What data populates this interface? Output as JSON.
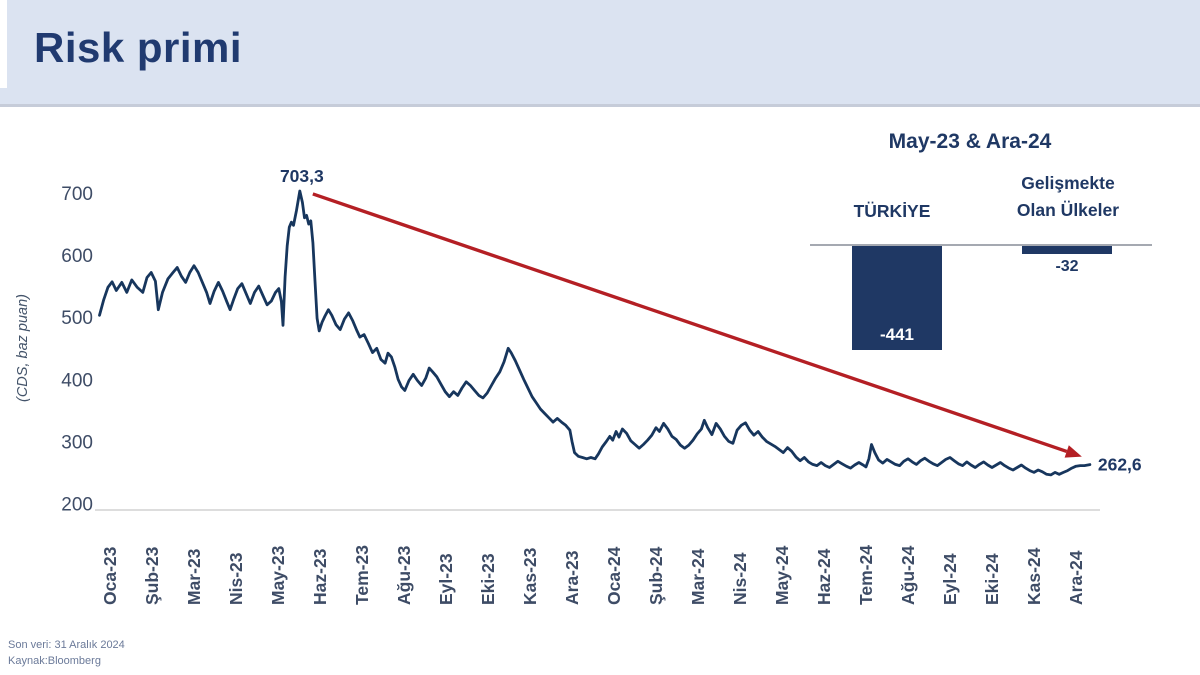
{
  "header": {
    "title": "Risk primi"
  },
  "footer": {
    "last_data": "Son veri: 31 Aralık 2024",
    "source": "Kaynak:Bloomberg"
  },
  "colors": {
    "navy": "#1f3864",
    "line": "#17365d",
    "red": "#b41f24",
    "header_bg": "#dbe3f1",
    "axis_line": "#d2d2d2",
    "tick_text": "#3e4c66",
    "footer_text": "#6b7a99"
  },
  "chart_data": {
    "type": "line",
    "title": "Risk primi",
    "ylabel": "(CDS, baz puan)",
    "ylim": [
      200,
      750
    ],
    "yticks": [
      200,
      300,
      400,
      500,
      600,
      700
    ],
    "grid": false,
    "legend": "none",
    "x_categories": [
      "Oca-23",
      "Şub-23",
      "Mar-23",
      "Nis-23",
      "May-23",
      "Haz-23",
      "Tem-23",
      "Ağu-23",
      "Eyl-23",
      "Eki-23",
      "Kas-23",
      "Ara-23",
      "Oca-24",
      "Şub-24",
      "Mar-24",
      "Nis-24",
      "May-24",
      "Haz-24",
      "Tem-24",
      "Ağu-24",
      "Eyl-24",
      "Eki-24",
      "Kas-24",
      "Ara-24"
    ],
    "series": [
      {
        "name": "Türkiye CDS (baz puan)",
        "points": [
          [
            -0.25,
            503
          ],
          [
            -0.15,
            528
          ],
          [
            -0.05,
            548
          ],
          [
            0.05,
            557
          ],
          [
            0.15,
            543
          ],
          [
            0.28,
            556
          ],
          [
            0.4,
            540
          ],
          [
            0.52,
            560
          ],
          [
            0.65,
            548
          ],
          [
            0.78,
            540
          ],
          [
            0.88,
            564
          ],
          [
            0.98,
            572
          ],
          [
            1.08,
            558
          ],
          [
            1.15,
            512
          ],
          [
            1.25,
            540
          ],
          [
            1.38,
            562
          ],
          [
            1.5,
            572
          ],
          [
            1.6,
            580
          ],
          [
            1.7,
            566
          ],
          [
            1.8,
            556
          ],
          [
            1.9,
            572
          ],
          [
            2.0,
            583
          ],
          [
            2.1,
            572
          ],
          [
            2.2,
            556
          ],
          [
            2.3,
            540
          ],
          [
            2.38,
            522
          ],
          [
            2.48,
            542
          ],
          [
            2.58,
            556
          ],
          [
            2.68,
            542
          ],
          [
            2.78,
            525
          ],
          [
            2.86,
            512
          ],
          [
            2.94,
            528
          ],
          [
            3.04,
            546
          ],
          [
            3.14,
            554
          ],
          [
            3.24,
            538
          ],
          [
            3.34,
            522
          ],
          [
            3.44,
            540
          ],
          [
            3.54,
            550
          ],
          [
            3.64,
            535
          ],
          [
            3.74,
            520
          ],
          [
            3.84,
            526
          ],
          [
            3.94,
            540
          ],
          [
            4.02,
            546
          ],
          [
            4.08,
            525
          ],
          [
            4.12,
            487
          ],
          [
            4.17,
            565
          ],
          [
            4.22,
            615
          ],
          [
            4.27,
            645
          ],
          [
            4.32,
            653
          ],
          [
            4.37,
            648
          ],
          [
            4.44,
            672
          ],
          [
            4.52,
            703.3
          ],
          [
            4.58,
            685
          ],
          [
            4.63,
            660
          ],
          [
            4.68,
            664
          ],
          [
            4.73,
            650
          ],
          [
            4.78,
            655
          ],
          [
            4.83,
            620
          ],
          [
            4.88,
            558
          ],
          [
            4.93,
            498
          ],
          [
            4.98,
            478
          ],
          [
            5.05,
            492
          ],
          [
            5.12,
            502
          ],
          [
            5.2,
            512
          ],
          [
            5.28,
            503
          ],
          [
            5.38,
            488
          ],
          [
            5.48,
            480
          ],
          [
            5.58,
            497
          ],
          [
            5.68,
            507
          ],
          [
            5.78,
            494
          ],
          [
            5.88,
            478
          ],
          [
            5.95,
            468
          ],
          [
            6.05,
            472
          ],
          [
            6.15,
            458
          ],
          [
            6.25,
            443
          ],
          [
            6.35,
            450
          ],
          [
            6.45,
            432
          ],
          [
            6.55,
            426
          ],
          [
            6.62,
            442
          ],
          [
            6.7,
            436
          ],
          [
            6.78,
            420
          ],
          [
            6.86,
            400
          ],
          [
            6.94,
            388
          ],
          [
            7.02,
            382
          ],
          [
            7.12,
            398
          ],
          [
            7.22,
            408
          ],
          [
            7.32,
            398
          ],
          [
            7.42,
            390
          ],
          [
            7.52,
            402
          ],
          [
            7.6,
            418
          ],
          [
            7.68,
            412
          ],
          [
            7.78,
            404
          ],
          [
            7.88,
            392
          ],
          [
            7.98,
            380
          ],
          [
            8.08,
            372
          ],
          [
            8.18,
            380
          ],
          [
            8.28,
            374
          ],
          [
            8.38,
            386
          ],
          [
            8.48,
            396
          ],
          [
            8.58,
            390
          ],
          [
            8.68,
            382
          ],
          [
            8.78,
            374
          ],
          [
            8.88,
            370
          ],
          [
            8.98,
            378
          ],
          [
            9.08,
            390
          ],
          [
            9.18,
            402
          ],
          [
            9.28,
            412
          ],
          [
            9.38,
            428
          ],
          [
            9.48,
            450
          ],
          [
            9.55,
            443
          ],
          [
            9.65,
            430
          ],
          [
            9.75,
            415
          ],
          [
            9.85,
            400
          ],
          [
            9.95,
            386
          ],
          [
            10.05,
            372
          ],
          [
            10.15,
            362
          ],
          [
            10.25,
            352
          ],
          [
            10.35,
            345
          ],
          [
            10.45,
            338
          ],
          [
            10.55,
            331
          ],
          [
            10.65,
            337
          ],
          [
            10.75,
            331
          ],
          [
            10.85,
            326
          ],
          [
            10.95,
            318
          ],
          [
            11.0,
            300
          ],
          [
            11.06,
            282
          ],
          [
            11.15,
            276
          ],
          [
            11.25,
            274
          ],
          [
            11.35,
            272
          ],
          [
            11.45,
            274
          ],
          [
            11.55,
            272
          ],
          [
            11.63,
            280
          ],
          [
            11.72,
            291
          ],
          [
            11.82,
            300
          ],
          [
            11.9,
            308
          ],
          [
            11.97,
            302
          ],
          [
            12.05,
            316
          ],
          [
            12.12,
            307
          ],
          [
            12.2,
            320
          ],
          [
            12.3,
            313
          ],
          [
            12.4,
            301
          ],
          [
            12.5,
            295
          ],
          [
            12.6,
            289
          ],
          [
            12.7,
            295
          ],
          [
            12.8,
            302
          ],
          [
            12.9,
            310
          ],
          [
            13.0,
            322
          ],
          [
            13.08,
            316
          ],
          [
            13.18,
            329
          ],
          [
            13.28,
            320
          ],
          [
            13.38,
            308
          ],
          [
            13.48,
            303
          ],
          [
            13.58,
            294
          ],
          [
            13.68,
            289
          ],
          [
            13.78,
            294
          ],
          [
            13.88,
            302
          ],
          [
            13.98,
            312
          ],
          [
            14.08,
            320
          ],
          [
            14.15,
            334
          ],
          [
            14.23,
            322
          ],
          [
            14.33,
            311
          ],
          [
            14.43,
            329
          ],
          [
            14.53,
            320
          ],
          [
            14.63,
            308
          ],
          [
            14.73,
            300
          ],
          [
            14.83,
            297
          ],
          [
            14.93,
            318
          ],
          [
            15.03,
            326
          ],
          [
            15.13,
            330
          ],
          [
            15.23,
            318
          ],
          [
            15.33,
            310
          ],
          [
            15.43,
            316
          ],
          [
            15.53,
            307
          ],
          [
            15.63,
            300
          ],
          [
            15.73,
            296
          ],
          [
            15.83,
            292
          ],
          [
            15.93,
            287
          ],
          [
            16.03,
            282
          ],
          [
            16.13,
            290
          ],
          [
            16.23,
            284
          ],
          [
            16.33,
            275
          ],
          [
            16.43,
            269
          ],
          [
            16.53,
            274
          ],
          [
            16.63,
            267
          ],
          [
            16.73,
            263
          ],
          [
            16.83,
            261
          ],
          [
            16.93,
            266
          ],
          [
            17.03,
            261
          ],
          [
            17.13,
            258
          ],
          [
            17.23,
            263
          ],
          [
            17.33,
            268
          ],
          [
            17.43,
            264
          ],
          [
            17.53,
            260
          ],
          [
            17.63,
            257
          ],
          [
            17.73,
            262
          ],
          [
            17.83,
            266
          ],
          [
            17.93,
            262
          ],
          [
            18.0,
            259
          ],
          [
            18.07,
            272
          ],
          [
            18.13,
            295
          ],
          [
            18.21,
            282
          ],
          [
            18.3,
            270
          ],
          [
            18.4,
            265
          ],
          [
            18.5,
            271
          ],
          [
            18.6,
            267
          ],
          [
            18.7,
            263
          ],
          [
            18.8,
            261
          ],
          [
            18.9,
            268
          ],
          [
            19.0,
            272
          ],
          [
            19.1,
            267
          ],
          [
            19.2,
            263
          ],
          [
            19.3,
            269
          ],
          [
            19.4,
            273
          ],
          [
            19.5,
            268
          ],
          [
            19.6,
            264
          ],
          [
            19.7,
            261
          ],
          [
            19.8,
            266
          ],
          [
            19.9,
            271
          ],
          [
            20.0,
            274
          ],
          [
            20.1,
            269
          ],
          [
            20.2,
            264
          ],
          [
            20.3,
            261
          ],
          [
            20.4,
            267
          ],
          [
            20.5,
            262
          ],
          [
            20.6,
            258
          ],
          [
            20.7,
            263
          ],
          [
            20.8,
            267
          ],
          [
            20.9,
            262
          ],
          [
            21.0,
            258
          ],
          [
            21.1,
            262
          ],
          [
            21.2,
            266
          ],
          [
            21.3,
            261
          ],
          [
            21.4,
            257
          ],
          [
            21.5,
            254
          ],
          [
            21.6,
            258
          ],
          [
            21.7,
            262
          ],
          [
            21.8,
            257
          ],
          [
            21.9,
            253
          ],
          [
            22.0,
            250
          ],
          [
            22.1,
            254
          ],
          [
            22.2,
            251
          ],
          [
            22.3,
            247
          ],
          [
            22.4,
            246
          ],
          [
            22.5,
            250
          ],
          [
            22.6,
            247
          ],
          [
            22.7,
            250
          ],
          [
            22.8,
            253
          ],
          [
            22.9,
            257
          ],
          [
            23.0,
            260
          ],
          [
            23.1,
            261
          ],
          [
            23.2,
            261
          ],
          [
            23.33,
            262.6
          ]
        ]
      }
    ],
    "annotations": [
      {
        "id": "peak",
        "label": "703,3",
        "m": 4.52,
        "value": 703.3
      },
      {
        "id": "last",
        "label": "262,6",
        "m": 23.33,
        "value": 262.6
      }
    ],
    "trend_arrow": {
      "from": "peak",
      "to": "last"
    }
  },
  "inset": {
    "type": "bar",
    "title": "May-23 & Ara-24",
    "categories": [
      "TÜRKİYE",
      "Gelişmekte Olan Ülkeler"
    ],
    "category_lines": [
      [
        "TÜRKİYE"
      ],
      [
        "Gelişmekte",
        "Olan Ülkeler"
      ]
    ],
    "values": [
      -441,
      -32
    ],
    "value_labels": [
      "-441",
      "-32"
    ]
  }
}
